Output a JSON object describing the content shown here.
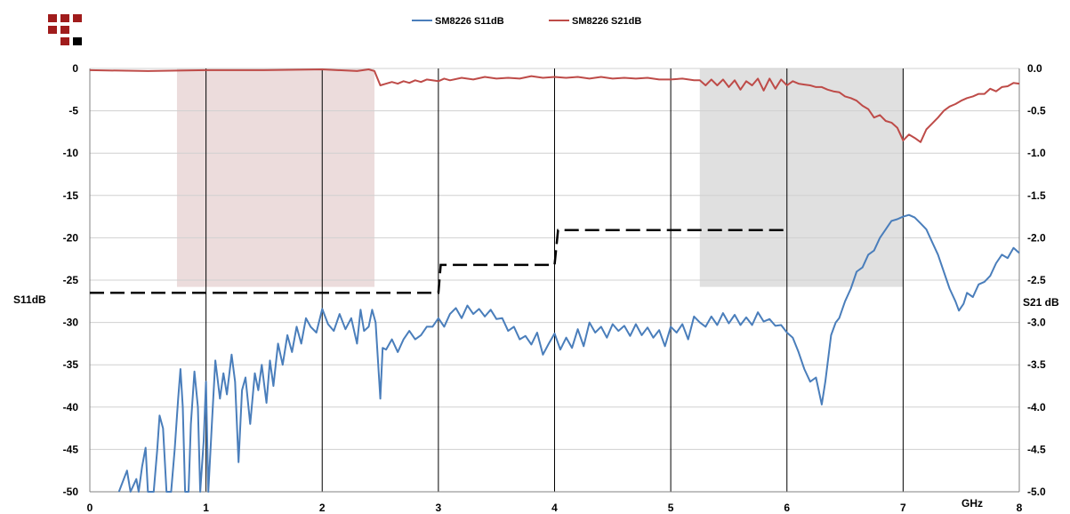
{
  "chart_data": {
    "type": "line",
    "x_unit_label": "GHz",
    "xlim": [
      0,
      8
    ],
    "x_ticks": [
      "0",
      "1",
      "2",
      "3",
      "4",
      "5",
      "6",
      "7",
      "8"
    ],
    "y_left": {
      "label": "S11dB",
      "lim": [
        -50,
        0
      ],
      "ticks": [
        "0",
        "-5",
        "-10",
        "-15",
        "-20",
        "-25",
        "-30",
        "-35",
        "-40",
        "-45",
        "-50"
      ]
    },
    "y_right": {
      "label": "S21 dB",
      "lim": [
        -5.0,
        0.0
      ],
      "ticks": [
        "0.0",
        "-0.5",
        "-1.0",
        "-1.5",
        "-2.0",
        "-2.5",
        "-3.0",
        "-3.5",
        "-4.0",
        "-4.5",
        "-5.0"
      ]
    },
    "legend_position": "top",
    "grid": {
      "vertical": true,
      "horizontal": true
    },
    "shaded_bands": [
      {
        "x": [
          0.75,
          2.45
        ],
        "y": [
          -25.8,
          0
        ],
        "color": "#ecdcdc"
      },
      {
        "x": [
          5.25,
          7.0
        ],
        "y": [
          -25.8,
          0
        ],
        "color": "#e0e0e0"
      }
    ],
    "spec_mask": {
      "color": "#000000",
      "points": [
        [
          0.0,
          -26.5
        ],
        [
          3.0,
          -26.5
        ],
        [
          3.02,
          -23.2
        ],
        [
          4.0,
          -23.2
        ],
        [
          4.03,
          -19.1
        ],
        [
          6.02,
          -19.1
        ]
      ]
    },
    "series": [
      {
        "name": "SM8226 S11dB",
        "axis": "left",
        "color": "#4a7ebb",
        "points": [
          [
            0.25,
            -50
          ],
          [
            0.32,
            -47.5
          ],
          [
            0.35,
            -50
          ],
          [
            0.4,
            -48.5
          ],
          [
            0.42,
            -50
          ],
          [
            0.45,
            -47
          ],
          [
            0.48,
            -44.8
          ],
          [
            0.5,
            -50
          ],
          [
            0.55,
            -50
          ],
          [
            0.58,
            -45
          ],
          [
            0.6,
            -41
          ],
          [
            0.63,
            -42.5
          ],
          [
            0.66,
            -50
          ],
          [
            0.7,
            -50
          ],
          [
            0.73,
            -45
          ],
          [
            0.76,
            -39
          ],
          [
            0.78,
            -35.5
          ],
          [
            0.8,
            -40
          ],
          [
            0.82,
            -50
          ],
          [
            0.85,
            -50
          ],
          [
            0.87,
            -42
          ],
          [
            0.9,
            -35.8
          ],
          [
            0.93,
            -40
          ],
          [
            0.95,
            -50
          ],
          [
            0.98,
            -44
          ],
          [
            1.0,
            -37
          ],
          [
            1.02,
            -50
          ],
          [
            1.05,
            -42
          ],
          [
            1.08,
            -34.5
          ],
          [
            1.12,
            -39
          ],
          [
            1.15,
            -36
          ],
          [
            1.18,
            -38.5
          ],
          [
            1.22,
            -33.8
          ],
          [
            1.25,
            -37
          ],
          [
            1.28,
            -46.5
          ],
          [
            1.31,
            -38
          ],
          [
            1.34,
            -36.5
          ],
          [
            1.38,
            -42
          ],
          [
            1.42,
            -36
          ],
          [
            1.45,
            -38
          ],
          [
            1.48,
            -35
          ],
          [
            1.52,
            -39.5
          ],
          [
            1.55,
            -34.5
          ],
          [
            1.58,
            -37.5
          ],
          [
            1.62,
            -32.5
          ],
          [
            1.66,
            -35
          ],
          [
            1.7,
            -31.5
          ],
          [
            1.74,
            -33.5
          ],
          [
            1.78,
            -30.5
          ],
          [
            1.82,
            -32.5
          ],
          [
            1.86,
            -29.5
          ],
          [
            1.9,
            -30.5
          ],
          [
            1.95,
            -31.2
          ],
          [
            2.0,
            -28.4
          ],
          [
            2.05,
            -30.2
          ],
          [
            2.1,
            -31
          ],
          [
            2.15,
            -29
          ],
          [
            2.2,
            -30.8
          ],
          [
            2.25,
            -29.5
          ],
          [
            2.3,
            -32.5
          ],
          [
            2.33,
            -28.5
          ],
          [
            2.36,
            -31
          ],
          [
            2.4,
            -30.5
          ],
          [
            2.43,
            -28.5
          ],
          [
            2.46,
            -30
          ],
          [
            2.5,
            -39
          ],
          [
            2.52,
            -33
          ],
          [
            2.55,
            -33.2
          ],
          [
            2.6,
            -32
          ],
          [
            2.65,
            -33.5
          ],
          [
            2.7,
            -32
          ],
          [
            2.75,
            -31
          ],
          [
            2.8,
            -32
          ],
          [
            2.85,
            -31.5
          ],
          [
            2.9,
            -30.5
          ],
          [
            2.95,
            -30.5
          ],
          [
            3.0,
            -29.5
          ],
          [
            3.05,
            -30.5
          ],
          [
            3.1,
            -29
          ],
          [
            3.15,
            -28.3
          ],
          [
            3.2,
            -29.5
          ],
          [
            3.25,
            -28
          ],
          [
            3.3,
            -29
          ],
          [
            3.35,
            -28.4
          ],
          [
            3.4,
            -29.3
          ],
          [
            3.45,
            -28.5
          ],
          [
            3.5,
            -29.6
          ],
          [
            3.55,
            -29.5
          ],
          [
            3.6,
            -31
          ],
          [
            3.65,
            -30.5
          ],
          [
            3.7,
            -32
          ],
          [
            3.75,
            -31.6
          ],
          [
            3.8,
            -32.6
          ],
          [
            3.85,
            -31.2
          ],
          [
            3.9,
            -33.8
          ],
          [
            3.95,
            -32.5
          ],
          [
            4.0,
            -31.3
          ],
          [
            4.05,
            -33.2
          ],
          [
            4.1,
            -31.8
          ],
          [
            4.15,
            -33
          ],
          [
            4.2,
            -30.8
          ],
          [
            4.25,
            -32.8
          ],
          [
            4.3,
            -30
          ],
          [
            4.35,
            -31.2
          ],
          [
            4.4,
            -30.5
          ],
          [
            4.45,
            -31.8
          ],
          [
            4.5,
            -30.2
          ],
          [
            4.55,
            -31
          ],
          [
            4.6,
            -30.4
          ],
          [
            4.65,
            -31.6
          ],
          [
            4.7,
            -30.2
          ],
          [
            4.75,
            -31.5
          ],
          [
            4.8,
            -30.6
          ],
          [
            4.85,
            -31.8
          ],
          [
            4.9,
            -30.9
          ],
          [
            4.95,
            -32.8
          ],
          [
            5.0,
            -30.5
          ],
          [
            5.05,
            -31.2
          ],
          [
            5.1,
            -30.2
          ],
          [
            5.15,
            -32
          ],
          [
            5.2,
            -29.3
          ],
          [
            5.25,
            -30
          ],
          [
            5.3,
            -30.5
          ],
          [
            5.35,
            -29.3
          ],
          [
            5.4,
            -30.3
          ],
          [
            5.45,
            -28.9
          ],
          [
            5.5,
            -30.1
          ],
          [
            5.55,
            -29.1
          ],
          [
            5.6,
            -30.3
          ],
          [
            5.65,
            -29.4
          ],
          [
            5.7,
            -30.3
          ],
          [
            5.75,
            -28.8
          ],
          [
            5.8,
            -29.9
          ],
          [
            5.85,
            -29.6
          ],
          [
            5.9,
            -30.4
          ],
          [
            5.95,
            -30.3
          ],
          [
            6.0,
            -31.2
          ],
          [
            6.05,
            -31.8
          ],
          [
            6.1,
            -33.5
          ],
          [
            6.15,
            -35.5
          ],
          [
            6.2,
            -37
          ],
          [
            6.25,
            -36.5
          ],
          [
            6.3,
            -39.7
          ],
          [
            6.33,
            -37
          ],
          [
            6.38,
            -31.5
          ],
          [
            6.42,
            -30
          ],
          [
            6.45,
            -29.5
          ],
          [
            6.5,
            -27.5
          ],
          [
            6.55,
            -26
          ],
          [
            6.6,
            -24
          ],
          [
            6.65,
            -23.5
          ],
          [
            6.7,
            -22
          ],
          [
            6.75,
            -21.5
          ],
          [
            6.8,
            -20
          ],
          [
            6.85,
            -19
          ],
          [
            6.9,
            -18
          ],
          [
            6.95,
            -17.8
          ],
          [
            7.0,
            -17.5
          ],
          [
            7.05,
            -17.3
          ],
          [
            7.1,
            -17.6
          ],
          [
            7.15,
            -18.3
          ],
          [
            7.2,
            -19
          ],
          [
            7.25,
            -20.5
          ],
          [
            7.3,
            -22
          ],
          [
            7.35,
            -24
          ],
          [
            7.4,
            -26
          ],
          [
            7.45,
            -27.5
          ],
          [
            7.48,
            -28.6
          ],
          [
            7.52,
            -27.8
          ],
          [
            7.55,
            -26.5
          ],
          [
            7.6,
            -27
          ],
          [
            7.65,
            -25.5
          ],
          [
            7.7,
            -25.2
          ],
          [
            7.75,
            -24.5
          ],
          [
            7.8,
            -23
          ],
          [
            7.85,
            -22
          ],
          [
            7.9,
            -22.4
          ],
          [
            7.95,
            -21.2
          ],
          [
            8.0,
            -21.8
          ]
        ]
      },
      {
        "name": "SM8226 S21dB",
        "axis": "right",
        "color": "#be4b48",
        "points": [
          [
            0.0,
            -0.02
          ],
          [
            0.5,
            -0.03
          ],
          [
            1.0,
            -0.02
          ],
          [
            1.5,
            -0.02
          ],
          [
            2.0,
            -0.01
          ],
          [
            2.3,
            -0.03
          ],
          [
            2.4,
            -0.01
          ],
          [
            2.45,
            -0.03
          ],
          [
            2.5,
            -0.2
          ],
          [
            2.55,
            -0.18
          ],
          [
            2.6,
            -0.16
          ],
          [
            2.65,
            -0.18
          ],
          [
            2.7,
            -0.15
          ],
          [
            2.75,
            -0.17
          ],
          [
            2.8,
            -0.14
          ],
          [
            2.85,
            -0.16
          ],
          [
            2.9,
            -0.13
          ],
          [
            3.0,
            -0.15
          ],
          [
            3.05,
            -0.12
          ],
          [
            3.1,
            -0.14
          ],
          [
            3.2,
            -0.11
          ],
          [
            3.3,
            -0.13
          ],
          [
            3.4,
            -0.1
          ],
          [
            3.5,
            -0.12
          ],
          [
            3.6,
            -0.11
          ],
          [
            3.7,
            -0.12
          ],
          [
            3.8,
            -0.09
          ],
          [
            3.9,
            -0.11
          ],
          [
            4.0,
            -0.1
          ],
          [
            4.1,
            -0.11
          ],
          [
            4.2,
            -0.1
          ],
          [
            4.3,
            -0.12
          ],
          [
            4.4,
            -0.1
          ],
          [
            4.5,
            -0.12
          ],
          [
            4.6,
            -0.11
          ],
          [
            4.7,
            -0.12
          ],
          [
            4.8,
            -0.11
          ],
          [
            4.9,
            -0.13
          ],
          [
            5.0,
            -0.13
          ],
          [
            5.1,
            -0.12
          ],
          [
            5.2,
            -0.14
          ],
          [
            5.25,
            -0.14
          ],
          [
            5.3,
            -0.2
          ],
          [
            5.35,
            -0.13
          ],
          [
            5.4,
            -0.2
          ],
          [
            5.45,
            -0.13
          ],
          [
            5.5,
            -0.22
          ],
          [
            5.55,
            -0.14
          ],
          [
            5.6,
            -0.25
          ],
          [
            5.65,
            -0.15
          ],
          [
            5.7,
            -0.2
          ],
          [
            5.75,
            -0.12
          ],
          [
            5.8,
            -0.26
          ],
          [
            5.85,
            -0.12
          ],
          [
            5.9,
            -0.24
          ],
          [
            5.95,
            -0.13
          ],
          [
            6.0,
            -0.2
          ],
          [
            6.05,
            -0.15
          ],
          [
            6.1,
            -0.18
          ],
          [
            6.15,
            -0.19
          ],
          [
            6.2,
            -0.2
          ],
          [
            6.25,
            -0.22
          ],
          [
            6.3,
            -0.22
          ],
          [
            6.35,
            -0.25
          ],
          [
            6.4,
            -0.27
          ],
          [
            6.45,
            -0.28
          ],
          [
            6.5,
            -0.33
          ],
          [
            6.55,
            -0.35
          ],
          [
            6.6,
            -0.38
          ],
          [
            6.65,
            -0.44
          ],
          [
            6.7,
            -0.48
          ],
          [
            6.75,
            -0.58
          ],
          [
            6.8,
            -0.55
          ],
          [
            6.85,
            -0.62
          ],
          [
            6.9,
            -0.64
          ],
          [
            6.95,
            -0.7
          ],
          [
            7.0,
            -0.85
          ],
          [
            7.05,
            -0.78
          ],
          [
            7.1,
            -0.82
          ],
          [
            7.15,
            -0.87
          ],
          [
            7.2,
            -0.72
          ],
          [
            7.25,
            -0.65
          ],
          [
            7.3,
            -0.58
          ],
          [
            7.35,
            -0.5
          ],
          [
            7.4,
            -0.45
          ],
          [
            7.45,
            -0.42
          ],
          [
            7.5,
            -0.38
          ],
          [
            7.55,
            -0.35
          ],
          [
            7.6,
            -0.33
          ],
          [
            7.65,
            -0.3
          ],
          [
            7.7,
            -0.3
          ],
          [
            7.75,
            -0.24
          ],
          [
            7.8,
            -0.27
          ],
          [
            7.85,
            -0.22
          ],
          [
            7.9,
            -0.21
          ],
          [
            7.95,
            -0.17
          ],
          [
            8.0,
            -0.18
          ]
        ]
      }
    ]
  }
}
